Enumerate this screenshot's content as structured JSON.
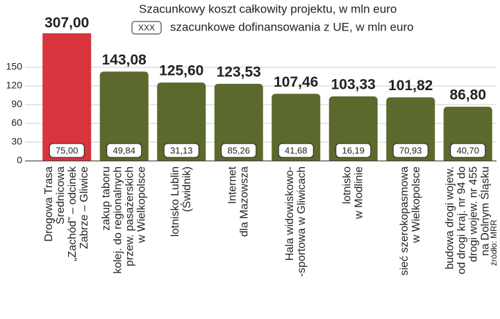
{
  "chart_data": {
    "type": "bar",
    "legend_total": "Szacunkowy koszt całkowity projektu, w mln euro",
    "legend_sample": "XXX",
    "legend_cofunding": "szacunkowe dofinansowania z UE, w mln euro",
    "source": "źródło: MRR",
    "categories": [
      [
        "Drogowa Trasa",
        "Średnicowa",
        "„Zachód” – odcinek",
        "Zabrze – Gliwice"
      ],
      [
        "zakup taboru",
        "kolej. do regionalnych",
        "przew. pasażerskich",
        "w Wielkopolsce"
      ],
      [
        "lotnisko Lublin",
        "(Świdnik)"
      ],
      [
        "Internet",
        "dla Mazowsza"
      ],
      [
        "Hala widowiskowo-",
        "-sportowa w Gliwicach"
      ],
      [
        "lotnisko",
        "w Modlinie"
      ],
      [
        "sieć szerokopasmowa",
        "w Wielkopolsce"
      ],
      [
        "budowa drogi wojew.",
        "od drogi kraj. nr 94 do",
        "drogi wojew. nr 455",
        "na Dolnym Śląsku"
      ]
    ],
    "values": [
      307.0,
      143.08,
      125.6,
      123.53,
      107.46,
      103.33,
      101.82,
      86.8
    ],
    "value_labels": [
      "307,00",
      "143,08",
      "125,60",
      "123,53",
      "107,46",
      "103,33",
      "101,82",
      "86,80"
    ],
    "colors": [
      "#d8353f",
      "#5b6a2c",
      "#5b6a2c",
      "#5b6a2c",
      "#5b6a2c",
      "#5b6a2c",
      "#5b6a2c",
      "#5b6a2c"
    ],
    "cofunding": [
      75.0,
      49.84,
      31.13,
      85.26,
      41.68,
      16.19,
      70.93,
      40.7
    ],
    "cofunding_labels": [
      "75,00",
      "49,84",
      "31,13",
      "85,26",
      "41,68",
      "16,19",
      "70,93",
      "40,70"
    ],
    "ylim": [
      0,
      150
    ],
    "yticks": [
      0,
      30,
      60,
      90,
      120,
      150
    ],
    "grid": true
  }
}
